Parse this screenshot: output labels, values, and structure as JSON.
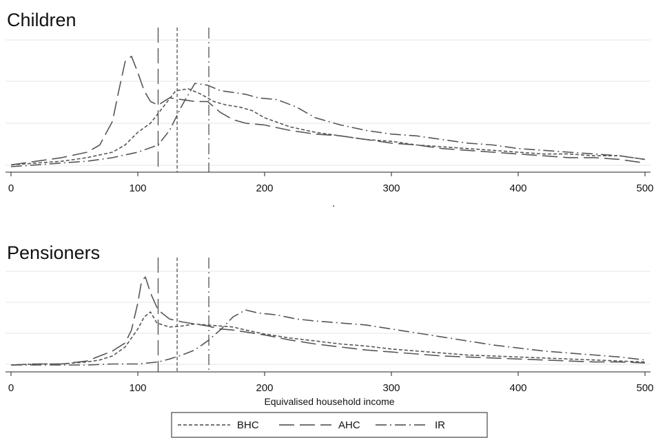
{
  "chart_data": [
    {
      "type": "line",
      "title": "Children",
      "xlabel": "",
      "ylabel": "",
      "xlim": [
        0,
        500
      ],
      "xticks": [
        0,
        100,
        200,
        300,
        400,
        500
      ],
      "xtick_labels": [
        "0",
        "100",
        "200",
        "300",
        "400",
        "500"
      ],
      "grid": true,
      "vlines": [
        {
          "series": "AHC",
          "x": 116
        },
        {
          "series": "BHC",
          "x": 131
        },
        {
          "series": "IR",
          "x": 156
        }
      ],
      "series": [
        {
          "name": "BHC",
          "dash": "dashed",
          "color": "#555555",
          "x": [
            0,
            20,
            40,
            60,
            80,
            90,
            100,
            110,
            120,
            130,
            140,
            150,
            160,
            170,
            180,
            190,
            200,
            220,
            240,
            260,
            280,
            300,
            320,
            340,
            360,
            380,
            400,
            420,
            440,
            460,
            480,
            500
          ],
          "y": [
            0.01,
            0.02,
            0.03,
            0.05,
            0.08,
            0.12,
            0.19,
            0.24,
            0.33,
            0.42,
            0.43,
            0.4,
            0.36,
            0.34,
            0.33,
            0.31,
            0.27,
            0.22,
            0.19,
            0.17,
            0.15,
            0.14,
            0.12,
            0.11,
            0.1,
            0.09,
            0.08,
            0.07,
            0.07,
            0.06,
            0.06,
            0.04
          ]
        },
        {
          "name": "AHC",
          "dash": "longdash",
          "color": "#555555",
          "x": [
            0,
            20,
            40,
            60,
            70,
            80,
            85,
            90,
            95,
            100,
            105,
            110,
            116,
            125,
            135,
            145,
            155,
            165,
            175,
            185,
            200,
            220,
            240,
            260,
            280,
            300,
            320,
            340,
            360,
            380,
            400,
            420,
            440,
            460,
            480,
            500
          ],
          "y": [
            0.01,
            0.03,
            0.05,
            0.08,
            0.12,
            0.25,
            0.42,
            0.58,
            0.61,
            0.52,
            0.42,
            0.36,
            0.34,
            0.38,
            0.37,
            0.36,
            0.36,
            0.3,
            0.26,
            0.24,
            0.23,
            0.2,
            0.18,
            0.17,
            0.15,
            0.13,
            0.12,
            0.1,
            0.09,
            0.08,
            0.07,
            0.06,
            0.05,
            0.05,
            0.04,
            0.02
          ]
        },
        {
          "name": "IR",
          "dash": "dashdot",
          "color": "#555555",
          "x": [
            0,
            20,
            40,
            60,
            80,
            100,
            116,
            125,
            135,
            145,
            155,
            165,
            175,
            185,
            195,
            210,
            225,
            240,
            260,
            280,
            300,
            320,
            340,
            360,
            380,
            400,
            420,
            440,
            460,
            480,
            500
          ],
          "y": [
            0.0,
            0.01,
            0.02,
            0.03,
            0.05,
            0.08,
            0.12,
            0.2,
            0.34,
            0.46,
            0.45,
            0.42,
            0.41,
            0.4,
            0.38,
            0.37,
            0.33,
            0.27,
            0.23,
            0.2,
            0.18,
            0.17,
            0.15,
            0.13,
            0.12,
            0.1,
            0.09,
            0.08,
            0.07,
            0.06,
            0.04
          ]
        }
      ]
    },
    {
      "type": "line",
      "title": "Pensioners",
      "xlabel": "Equivalised household income",
      "ylabel": "",
      "xlim": [
        0,
        500
      ],
      "xticks": [
        0,
        100,
        200,
        300,
        400,
        500
      ],
      "xtick_labels": [
        "0",
        "100",
        "200",
        "300",
        "400",
        "500"
      ],
      "grid": true,
      "vlines": [
        {
          "series": "AHC",
          "x": 116
        },
        {
          "series": "BHC",
          "x": 131
        },
        {
          "series": "IR",
          "x": 156
        }
      ],
      "series": [
        {
          "name": "BHC",
          "dash": "dashed",
          "color": "#555555",
          "x": [
            0,
            20,
            40,
            60,
            70,
            80,
            90,
            100,
            105,
            110,
            115,
            125,
            135,
            145,
            155,
            165,
            175,
            185,
            200,
            220,
            240,
            260,
            280,
            300,
            320,
            340,
            360,
            380,
            400,
            420,
            440,
            460,
            480,
            500
          ],
          "y": [
            0.0,
            0.01,
            0.01,
            0.03,
            0.05,
            0.09,
            0.18,
            0.36,
            0.48,
            0.53,
            0.42,
            0.38,
            0.39,
            0.41,
            0.4,
            0.39,
            0.38,
            0.35,
            0.31,
            0.27,
            0.24,
            0.21,
            0.19,
            0.16,
            0.14,
            0.12,
            0.1,
            0.09,
            0.08,
            0.07,
            0.06,
            0.05,
            0.04,
            0.03
          ]
        },
        {
          "name": "AHC",
          "dash": "longdash",
          "color": "#555555",
          "x": [
            0,
            20,
            40,
            60,
            70,
            80,
            90,
            95,
            100,
            103,
            106,
            110,
            116,
            125,
            135,
            145,
            155,
            165,
            175,
            185,
            200,
            220,
            240,
            260,
            280,
            300,
            320,
            340,
            360,
            380,
            400,
            420,
            440,
            460,
            480,
            500
          ],
          "y": [
            0.0,
            0.01,
            0.01,
            0.04,
            0.09,
            0.14,
            0.22,
            0.35,
            0.62,
            0.84,
            0.88,
            0.72,
            0.55,
            0.46,
            0.43,
            0.41,
            0.39,
            0.36,
            0.35,
            0.33,
            0.3,
            0.25,
            0.21,
            0.18,
            0.15,
            0.13,
            0.11,
            0.09,
            0.08,
            0.07,
            0.06,
            0.05,
            0.04,
            0.03,
            0.03,
            0.02
          ]
        },
        {
          "name": "IR",
          "dash": "dashdot",
          "color": "#555555",
          "x": [
            0,
            20,
            40,
            60,
            80,
            100,
            116,
            125,
            135,
            145,
            155,
            165,
            175,
            185,
            195,
            210,
            225,
            240,
            260,
            280,
            300,
            320,
            340,
            360,
            380,
            400,
            420,
            440,
            460,
            480,
            500
          ],
          "y": [
            0.0,
            0.0,
            0.0,
            0.0,
            0.01,
            0.01,
            0.03,
            0.06,
            0.1,
            0.15,
            0.24,
            0.35,
            0.48,
            0.55,
            0.52,
            0.5,
            0.46,
            0.44,
            0.42,
            0.4,
            0.36,
            0.32,
            0.28,
            0.24,
            0.2,
            0.17,
            0.14,
            0.12,
            0.1,
            0.08,
            0.05
          ]
        }
      ]
    }
  ],
  "legend": {
    "placement": "bottom",
    "items": [
      {
        "label": "BHC",
        "dash": "dashed"
      },
      {
        "label": "AHC",
        "dash": "longdash"
      },
      {
        "label": "IR",
        "dash": "dashdot"
      }
    ]
  },
  "stray_mark": "."
}
